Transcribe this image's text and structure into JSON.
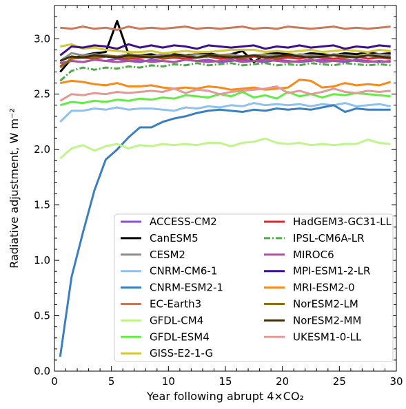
{
  "chart_data": {
    "type": "line",
    "xlabel": "Year following abrupt 4×CO₂",
    "ylabel": "Radiative adjustment, W m⁻²",
    "xlim": [
      0,
      30
    ],
    "ylim": [
      0.0,
      3.3
    ],
    "xticks": [
      0,
      5,
      10,
      15,
      20,
      25,
      30
    ],
    "yticks": [
      0.0,
      0.5,
      1.0,
      1.5,
      2.0,
      2.5,
      3.0
    ],
    "xtick_labels": [
      "0",
      "5",
      "10",
      "15",
      "20",
      "25",
      "30"
    ],
    "ytick_labels": [
      "0.0",
      "0.5",
      "1.0",
      "1.5",
      "2.0",
      "2.5",
      "3.0"
    ],
    "grid": false,
    "legend_position": "lower-right",
    "x": [
      0.5,
      1.5,
      2.5,
      3.5,
      4.5,
      5.5,
      6.5,
      7.5,
      8.5,
      9.5,
      10.5,
      11.5,
      12.5,
      13.5,
      14.5,
      15.5,
      16.5,
      17.5,
      18.5,
      19.5,
      20.5,
      21.5,
      22.5,
      23.5,
      24.5,
      25.5,
      26.5,
      27.5,
      28.5,
      29.5
    ],
    "series": [
      {
        "name": "ACCESS-CM2",
        "color": "#8a4fd6",
        "style": "solid",
        "values": [
          2.78,
          2.8,
          2.79,
          2.81,
          2.8,
          2.82,
          2.8,
          2.79,
          2.81,
          2.8,
          2.79,
          2.81,
          2.8,
          2.81,
          2.79,
          2.8,
          2.81,
          2.8,
          2.79,
          2.81,
          2.8,
          2.79,
          2.8,
          2.81,
          2.8,
          2.79,
          2.81,
          2.8,
          2.79,
          2.8
        ]
      },
      {
        "name": "CanESM5",
        "color": "#000000",
        "style": "solid",
        "values": [
          2.7,
          2.82,
          2.85,
          2.87,
          2.88,
          3.16,
          2.86,
          2.85,
          2.86,
          2.84,
          2.86,
          2.85,
          2.86,
          2.87,
          2.85,
          2.86,
          2.89,
          2.79,
          2.86,
          2.87,
          2.86,
          2.85,
          2.87,
          2.86,
          2.85,
          2.87,
          2.86,
          2.88,
          2.86,
          2.87
        ]
      },
      {
        "name": "CESM2",
        "color": "#8c8c8c",
        "style": "solid",
        "values": [
          2.8,
          2.87,
          2.85,
          2.86,
          2.85,
          2.84,
          2.86,
          2.85,
          2.84,
          2.86,
          2.85,
          2.84,
          2.86,
          2.85,
          2.85,
          2.86,
          2.84,
          2.85,
          2.86,
          2.85,
          2.84,
          2.86,
          2.85,
          2.84,
          2.86,
          2.85,
          2.84,
          2.85,
          2.86,
          2.85
        ]
      },
      {
        "name": "CNRM-CM6-1",
        "color": "#8fc1f0",
        "style": "solid",
        "values": [
          2.25,
          2.35,
          2.35,
          2.37,
          2.36,
          2.38,
          2.36,
          2.37,
          2.37,
          2.36,
          2.35,
          2.38,
          2.37,
          2.39,
          2.38,
          2.4,
          2.39,
          2.42,
          2.4,
          2.41,
          2.4,
          2.41,
          2.39,
          2.41,
          2.4,
          2.42,
          2.39,
          2.4,
          2.41,
          2.39
        ]
      },
      {
        "name": "CNRM-ESM2-1",
        "color": "#3a7fc0",
        "style": "solid",
        "values": [
          0.13,
          0.85,
          1.25,
          1.63,
          1.91,
          2.0,
          2.11,
          2.2,
          2.2,
          2.25,
          2.28,
          2.3,
          2.33,
          2.35,
          2.36,
          2.35,
          2.34,
          2.36,
          2.35,
          2.37,
          2.36,
          2.37,
          2.36,
          2.38,
          2.4,
          2.34,
          2.37,
          2.36,
          2.36,
          2.36
        ]
      },
      {
        "name": "EC-Earth3",
        "color": "#c8795a",
        "style": "solid",
        "values": [
          3.1,
          3.09,
          3.11,
          3.09,
          3.1,
          3.08,
          3.11,
          3.09,
          3.1,
          3.09,
          3.1,
          3.11,
          3.09,
          3.1,
          3.09,
          3.1,
          3.11,
          3.09,
          3.1,
          3.09,
          3.11,
          3.1,
          3.09,
          3.1,
          3.11,
          3.09,
          3.1,
          3.09,
          3.1,
          3.11
        ]
      },
      {
        "name": "GFDL-CM4",
        "color": "#bff58a",
        "style": "solid",
        "values": [
          1.92,
          2.01,
          2.04,
          1.99,
          2.03,
          2.05,
          2.01,
          2.04,
          2.03,
          2.05,
          2.04,
          2.05,
          2.04,
          2.06,
          2.06,
          2.03,
          2.06,
          2.07,
          2.1,
          2.06,
          2.05,
          2.06,
          2.04,
          2.05,
          2.04,
          2.05,
          2.05,
          2.09,
          2.06,
          2.05
        ]
      },
      {
        "name": "GFDL-ESM4",
        "color": "#64ec46",
        "style": "solid",
        "values": [
          2.4,
          2.43,
          2.42,
          2.44,
          2.43,
          2.45,
          2.44,
          2.46,
          2.45,
          2.47,
          2.46,
          2.49,
          2.48,
          2.47,
          2.5,
          2.48,
          2.52,
          2.47,
          2.49,
          2.46,
          2.52,
          2.48,
          2.5,
          2.47,
          2.5,
          2.49,
          2.51,
          2.5,
          2.49,
          2.48
        ]
      },
      {
        "name": "GISS-E2-1-G",
        "color": "#d4c933",
        "style": "solid",
        "values": [
          2.93,
          2.95,
          2.91,
          2.92,
          2.9,
          2.89,
          2.88,
          2.88,
          2.89,
          2.87,
          2.88,
          2.89,
          2.88,
          2.88,
          2.89,
          2.9,
          2.9,
          2.9,
          2.88,
          2.89,
          2.88,
          2.89,
          2.9,
          2.88,
          2.89,
          2.9,
          2.89,
          2.88,
          2.9,
          2.89
        ]
      },
      {
        "name": "HadGEM3-GC31-LL",
        "color": "#e3242b",
        "style": "solid",
        "values": [
          2.75,
          2.82,
          2.83,
          2.82,
          2.84,
          2.83,
          2.82,
          2.83,
          2.84,
          2.82,
          2.83,
          2.82,
          2.83,
          2.84,
          2.82,
          2.83,
          2.82,
          2.84,
          2.83,
          2.82,
          2.83,
          2.82,
          2.84,
          2.83,
          2.82,
          2.83,
          2.84,
          2.82,
          2.83,
          2.82
        ]
      },
      {
        "name": "IPSL-CM6A-LR",
        "color": "#4faa47",
        "style": "dashdot",
        "values": [
          2.62,
          2.71,
          2.74,
          2.72,
          2.74,
          2.73,
          2.75,
          2.74,
          2.76,
          2.75,
          2.77,
          2.76,
          2.78,
          2.76,
          2.77,
          2.78,
          2.76,
          2.77,
          2.78,
          2.76,
          2.77,
          2.76,
          2.78,
          2.77,
          2.76,
          2.78,
          2.77,
          2.76,
          2.77,
          2.76
        ]
      },
      {
        "name": "MIROC6",
        "color": "#a8559a",
        "style": "solid",
        "values": [
          2.78,
          2.8,
          2.79,
          2.81,
          2.8,
          2.79,
          2.8,
          2.81,
          2.79,
          2.8,
          2.79,
          2.81,
          2.8,
          2.79,
          2.8,
          2.81,
          2.79,
          2.8,
          2.81,
          2.8,
          2.79,
          2.8,
          2.81,
          2.79,
          2.8,
          2.81,
          2.8,
          2.79,
          2.8,
          2.79
        ]
      },
      {
        "name": "MPI-ESM1-2-LR",
        "color": "#3d0f8c",
        "style": "solid",
        "values": [
          2.85,
          2.93,
          2.92,
          2.94,
          2.93,
          2.91,
          2.95,
          2.92,
          2.94,
          2.92,
          2.94,
          2.93,
          2.91,
          2.94,
          2.93,
          2.92,
          2.93,
          2.94,
          2.91,
          2.93,
          2.92,
          2.94,
          2.92,
          2.93,
          2.94,
          2.91,
          2.93,
          2.92,
          2.94,
          2.93
        ]
      },
      {
        "name": "MRI-ESM2-0",
        "color": "#f58b1e",
        "style": "solid",
        "values": [
          2.6,
          2.62,
          2.61,
          2.59,
          2.58,
          2.6,
          2.57,
          2.57,
          2.58,
          2.56,
          2.55,
          2.56,
          2.55,
          2.57,
          2.56,
          2.54,
          2.55,
          2.56,
          2.54,
          2.55,
          2.56,
          2.63,
          2.62,
          2.56,
          2.57,
          2.6,
          2.58,
          2.59,
          2.58,
          2.61
        ]
      },
      {
        "name": "NorESM2-LM",
        "color": "#8f6e0d",
        "style": "solid",
        "values": [
          2.74,
          2.82,
          2.84,
          2.83,
          2.85,
          2.84,
          2.83,
          2.85,
          2.84,
          2.83,
          2.84,
          2.85,
          2.83,
          2.84,
          2.85,
          2.84,
          2.83,
          2.85,
          2.84,
          2.83,
          2.85,
          2.84,
          2.83,
          2.84,
          2.85,
          2.83,
          2.84,
          2.85,
          2.84,
          2.83
        ]
      },
      {
        "name": "NorESM2-MM",
        "color": "#3c2e0a",
        "style": "solid",
        "values": [
          2.8,
          2.84,
          2.83,
          2.85,
          2.84,
          2.83,
          2.85,
          2.84,
          2.83,
          2.84,
          2.85,
          2.84,
          2.83,
          2.85,
          2.84,
          2.83,
          2.84,
          2.85,
          2.83,
          2.84,
          2.85,
          2.84,
          2.83,
          2.84,
          2.85,
          2.84,
          2.83,
          2.85,
          2.84,
          2.83
        ]
      },
      {
        "name": "UKESM1-0-LL",
        "color": "#e59898",
        "style": "solid",
        "values": [
          2.44,
          2.5,
          2.49,
          2.51,
          2.5,
          2.52,
          2.51,
          2.52,
          2.53,
          2.52,
          2.55,
          2.51,
          2.54,
          2.53,
          2.5,
          2.52,
          2.53,
          2.54,
          2.55,
          2.57,
          2.51,
          2.53,
          2.5,
          2.52,
          2.55,
          2.52,
          2.51,
          2.53,
          2.52,
          2.53
        ]
      }
    ]
  }
}
